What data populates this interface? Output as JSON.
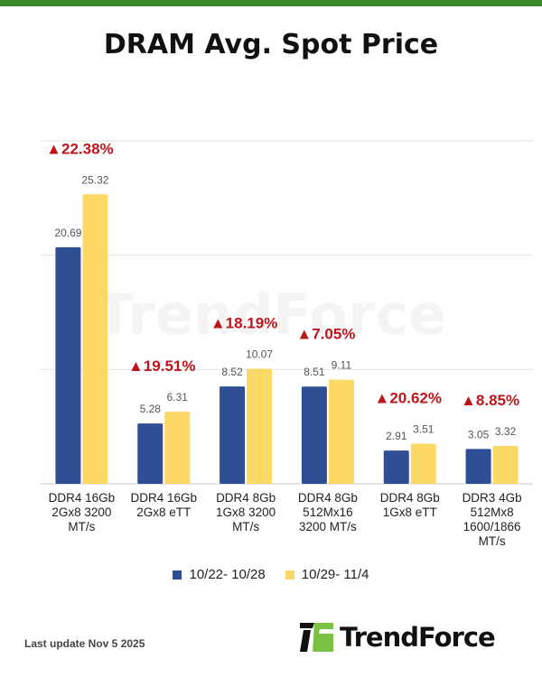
{
  "title": "DRAM Avg. Spot Price",
  "chart_data": {
    "type": "bar",
    "title": "DRAM Avg. Spot Price",
    "categories": [
      [
        "DDR4 16Gb",
        "2Gx8 3200",
        "MT/s"
      ],
      [
        "DDR4 16Gb",
        "2Gx8 eTT"
      ],
      [
        "DDR4 8Gb",
        "1Gx8 3200",
        "MT/s"
      ],
      [
        "DDR4 8Gb",
        "512Mx16",
        "3200 MT/s"
      ],
      [
        "DDR4 8Gb",
        "1Gx8 eTT"
      ],
      [
        "DDR3 4Gb",
        "512Mx8",
        "1600/1866",
        "MT/s"
      ]
    ],
    "series": [
      {
        "name": "10/22- 10/28",
        "color": "#2f4f94",
        "values": [
          20.69,
          5.28,
          8.52,
          8.51,
          2.91,
          3.05
        ],
        "labels": [
          "20.69",
          "5.28",
          "8.52",
          "8.51",
          "2.91",
          "3.05"
        ]
      },
      {
        "name": "10/29- 11/4",
        "color": "#fcd867",
        "values": [
          25.32,
          6.31,
          10.07,
          9.11,
          3.51,
          3.32
        ],
        "labels": [
          "25.32",
          "6.31",
          "10.07",
          "9.11",
          "3.51",
          "3.32"
        ]
      }
    ],
    "annotations": [
      "▲22.38%",
      "▲19.51%",
      "▲18.19%",
      "▲7.05%",
      "▲20.62%",
      "▲8.85%"
    ],
    "annotation_color": "#c0141c",
    "ylim": [
      0,
      30
    ],
    "gridlines": [
      0,
      10,
      20,
      30
    ],
    "grid": true,
    "legend_position": "bottom"
  },
  "footer": {
    "last_update": "Last update Nov 5  2025"
  },
  "logo": {
    "text": "TrendForce"
  },
  "watermark": "TrendForce"
}
